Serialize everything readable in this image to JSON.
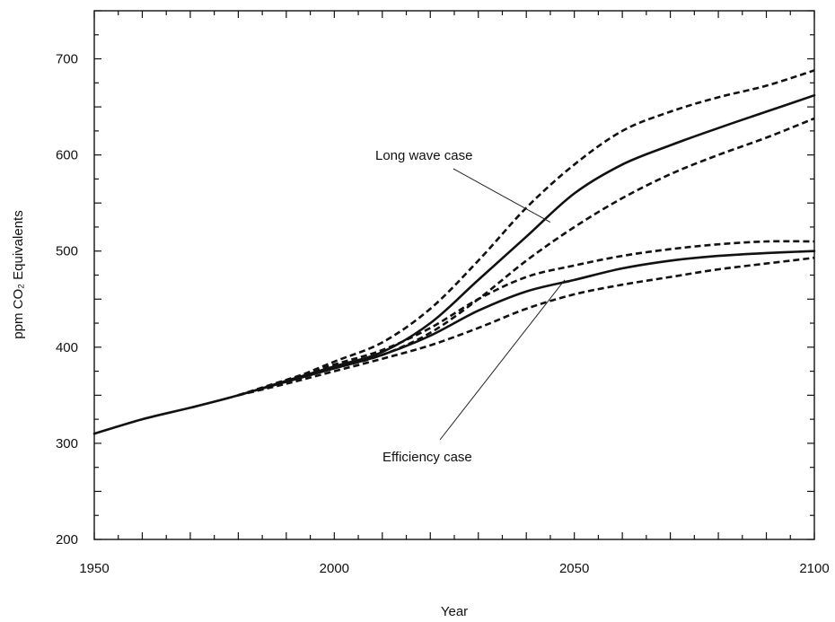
{
  "chart_data": {
    "type": "line",
    "xlabel": "Year",
    "ylabel": "ppm CO₂ Equivalents",
    "xlim": [
      1950,
      2100
    ],
    "ylim": [
      200,
      750
    ],
    "x_ticks_labeled": [
      1950,
      2000,
      2050,
      2100
    ],
    "y_ticks_labeled": [
      200,
      300,
      400,
      500,
      600,
      700
    ],
    "grid": false,
    "annotations": [
      {
        "text": "Long wave case",
        "points_to": {
          "x": 2045,
          "y": 530
        }
      },
      {
        "text": "Efficiency case",
        "points_to": {
          "x": 2048,
          "y": 470
        }
      }
    ],
    "series": [
      {
        "style": "solid",
        "x": [
          1950,
          1960,
          1970,
          1980,
          1990,
          2000,
          2010,
          2020,
          2030,
          2040,
          2050,
          2060,
          2070,
          2080,
          2090,
          2100
        ],
        "values": [
          310,
          325,
          337,
          350,
          365,
          380,
          395,
          425,
          470,
          515,
          560,
          590,
          610,
          628,
          645,
          662
        ]
      },
      {
        "style": "dashed",
        "x": [
          1980,
          1990,
          2000,
          2010,
          2020,
          2030,
          2040,
          2050,
          2060,
          2070,
          2080,
          2090,
          2100
        ],
        "values": [
          350,
          365,
          385,
          405,
          440,
          490,
          545,
          590,
          625,
          645,
          660,
          672,
          688
        ]
      },
      {
        "style": "dashed",
        "x": [
          1980,
          1990,
          2000,
          2010,
          2020,
          2030,
          2040,
          2050,
          2060,
          2070,
          2080,
          2090,
          2100
        ],
        "values": [
          350,
          365,
          378,
          392,
          415,
          450,
          490,
          525,
          555,
          580,
          600,
          618,
          638
        ]
      },
      {
        "style": "solid",
        "x": [
          1980,
          1990,
          2000,
          2010,
          2020,
          2030,
          2040,
          2050,
          2060,
          2070,
          2080,
          2090,
          2100
        ],
        "values": [
          350,
          364,
          378,
          392,
          412,
          438,
          458,
          470,
          482,
          490,
          495,
          498,
          500
        ]
      },
      {
        "style": "dashed",
        "x": [
          1980,
          1990,
          2000,
          2010,
          2020,
          2030,
          2040,
          2050,
          2060,
          2070,
          2080,
          2090,
          2100
        ],
        "values": [
          350,
          366,
          382,
          397,
          420,
          450,
          473,
          485,
          495,
          502,
          507,
          510,
          510
        ]
      },
      {
        "style": "dashed",
        "x": [
          1980,
          1990,
          2000,
          2010,
          2020,
          2030,
          2040,
          2050,
          2060,
          2070,
          2080,
          2090,
          2100
        ],
        "values": [
          350,
          362,
          375,
          388,
          402,
          420,
          440,
          455,
          465,
          473,
          481,
          487,
          493
        ]
      }
    ]
  }
}
